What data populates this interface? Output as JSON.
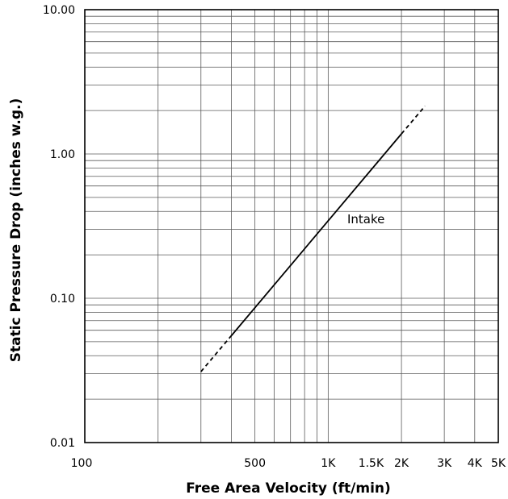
{
  "chart_data": {
    "type": "line",
    "title": "",
    "xlabel": "Free Area Velocity (ft/min)",
    "ylabel": "Static Pressure Drop (inches w.g.)",
    "xscale": "log",
    "yscale": "log",
    "xlim": [
      100,
      5000
    ],
    "ylim": [
      0.01,
      10
    ],
    "grid": true,
    "x_ticks": [
      {
        "value": 100,
        "label": "100"
      },
      {
        "value": 500,
        "label": "500"
      },
      {
        "value": 1000,
        "label": "1K"
      },
      {
        "value": 1500,
        "label": "1.5K"
      },
      {
        "value": 2000,
        "label": "2K"
      },
      {
        "value": 3000,
        "label": "3K"
      },
      {
        "value": 4000,
        "label": "4K"
      },
      {
        "value": 5000,
        "label": "5K"
      }
    ],
    "y_ticks": [
      {
        "value": 0.01,
        "label": "0.01"
      },
      {
        "value": 0.1,
        "label": "0.10"
      },
      {
        "value": 1,
        "label": "1.00"
      },
      {
        "value": 10,
        "label": "10.00"
      }
    ],
    "series": [
      {
        "name": "Intake",
        "color": "#000000",
        "segments": [
          {
            "style": "dashed",
            "x": [
              300,
              400
            ],
            "y": [
              0.031,
              0.055
            ]
          },
          {
            "style": "solid",
            "x": [
              400,
              2000
            ],
            "y": [
              0.055,
              1.38
            ]
          },
          {
            "style": "dashed",
            "x": [
              2000,
              2500
            ],
            "y": [
              1.38,
              2.15
            ]
          }
        ],
        "label_at": {
          "x": 1060,
          "y": 0.33
        }
      }
    ]
  }
}
